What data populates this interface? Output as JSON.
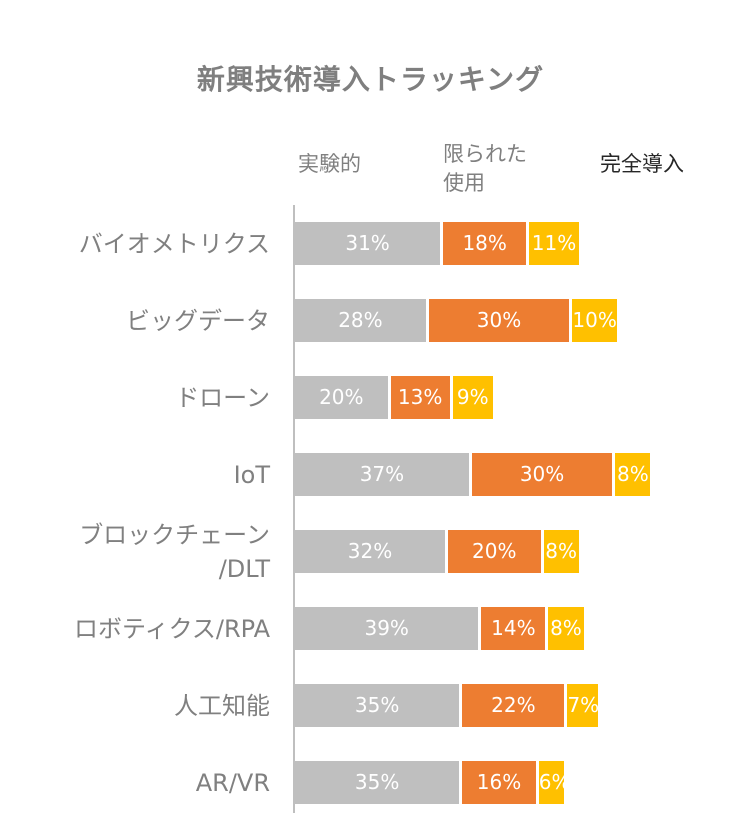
{
  "colors": {
    "experimental": "#bfbfbf",
    "limited": "#ed7d31",
    "full": "#ffc000",
    "category_text": "#808080",
    "title_text": "#7f7f7f"
  },
  "chart_data": {
    "type": "bar",
    "stacked": true,
    "orientation": "horizontal",
    "title": "新興技術導入トラッキング",
    "categories": [
      "バイオメトリクス",
      "ビッグデータ",
      "ドローン",
      "IoT",
      "ブロックチェーン\n/DLT",
      "ロボティクス/RPA",
      "人工知能",
      "AR/VR"
    ],
    "series": [
      {
        "name": "実験的",
        "color": "#bfbfbf",
        "values": [
          31,
          28,
          20,
          37,
          32,
          39,
          35,
          35
        ]
      },
      {
        "name": "限られた\n使用",
        "color": "#ed7d31",
        "values": [
          18,
          30,
          13,
          30,
          20,
          14,
          22,
          16
        ]
      },
      {
        "name": "完全導入",
        "color": "#ffc000",
        "values": [
          11,
          10,
          9,
          8,
          8,
          8,
          7,
          6
        ]
      }
    ],
    "value_format": "{v}%",
    "legend_position": "top",
    "xlim": [
      0,
      80
    ],
    "grid": false
  }
}
